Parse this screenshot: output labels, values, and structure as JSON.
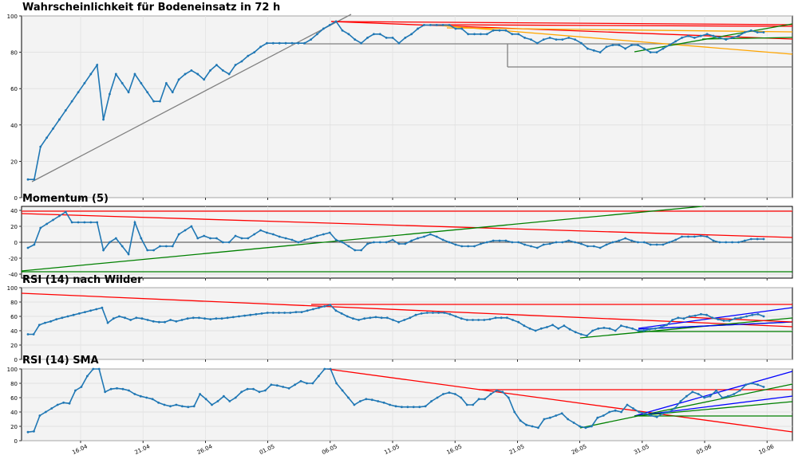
{
  "chart_data": [
    {
      "type": "line",
      "title": "Wahrscheinlichkeit für Bodeneinsatz in 72 h",
      "ylim": [
        0,
        100
      ],
      "yticks": [
        0,
        20,
        40,
        60,
        80,
        100
      ],
      "grid": true,
      "series": [
        {
          "values": [
            10,
            10,
            28,
            33,
            38,
            43,
            48,
            53,
            58,
            63,
            68,
            73,
            43,
            57,
            68,
            63,
            58,
            68,
            63,
            58,
            53,
            53,
            63,
            58,
            65,
            68,
            70,
            68,
            65,
            70,
            73,
            70,
            68,
            73,
            75,
            78,
            80,
            83,
            85,
            85,
            85,
            85,
            85,
            85,
            85,
            87,
            90,
            93,
            95,
            97,
            92,
            90,
            87,
            85,
            88,
            90,
            90,
            88,
            88,
            85,
            88,
            90,
            93,
            95,
            95,
            95,
            95,
            95,
            93,
            93,
            90,
            90,
            90,
            90,
            92,
            92,
            92,
            90,
            90,
            88,
            87,
            85,
            87,
            88,
            87,
            87,
            88,
            87,
            85,
            82,
            81,
            80,
            83,
            84,
            84,
            82,
            84,
            84,
            82,
            80,
            80,
            82,
            84,
            86,
            88,
            89,
            88,
            89,
            90,
            89,
            88,
            87,
            88,
            89,
            91,
            92,
            91,
            91
          ]
        }
      ]
    },
    {
      "type": "line",
      "title": "Momentum (5)",
      "ylim": [
        -45,
        45
      ],
      "yticks": [
        -40,
        -20,
        0,
        20,
        40
      ],
      "grid": true,
      "series": [
        {
          "values": [
            -7,
            -3,
            18,
            23,
            28,
            33,
            38,
            25,
            25,
            25,
            25,
            25,
            -10,
            0,
            5,
            -5,
            -15,
            25,
            5,
            -10,
            -10,
            -5,
            -5,
            -5,
            10,
            15,
            20,
            5,
            8,
            5,
            5,
            0,
            0,
            8,
            5,
            5,
            10,
            15,
            12,
            10,
            7,
            5,
            3,
            0,
            3,
            5,
            8,
            10,
            12,
            3,
            0,
            -5,
            -10,
            -10,
            -2,
            0,
            0,
            0,
            3,
            -2,
            -2,
            2,
            5,
            7,
            10,
            7,
            3,
            0,
            -3,
            -5,
            -5,
            -5,
            -2,
            0,
            2,
            2,
            2,
            0,
            0,
            -3,
            -5,
            -7,
            -3,
            -2,
            0,
            0,
            2,
            0,
            -2,
            -5,
            -5,
            -7,
            -3,
            0,
            2,
            5,
            2,
            0,
            0,
            -3,
            -3,
            -3,
            0,
            3,
            7,
            7,
            7,
            8,
            7,
            2,
            0,
            0,
            0,
            0,
            2,
            4,
            4,
            4
          ]
        }
      ]
    },
    {
      "type": "line",
      "title": "RSI (14) nach Wilder",
      "ylim": [
        0,
        100
      ],
      "yticks": [
        0,
        20,
        40,
        60,
        80,
        100
      ],
      "grid": true,
      "series": [
        {
          "values": [
            35,
            35,
            48,
            51,
            53,
            56,
            58,
            60,
            62,
            64,
            66,
            68,
            70,
            72,
            51,
            57,
            60,
            58,
            55,
            58,
            57,
            55,
            53,
            52,
            52,
            55,
            53,
            55,
            57,
            58,
            58,
            57,
            56,
            57,
            57,
            58,
            59,
            60,
            61,
            62,
            63,
            64,
            65,
            65,
            65,
            65,
            65,
            66,
            66,
            68,
            70,
            72,
            74,
            76,
            68,
            64,
            60,
            57,
            55,
            57,
            58,
            59,
            58,
            58,
            55,
            52,
            55,
            58,
            62,
            64,
            65,
            65,
            65,
            65,
            63,
            60,
            57,
            55,
            55,
            55,
            55,
            56,
            58,
            58,
            58,
            55,
            52,
            47,
            43,
            40,
            43,
            45,
            48,
            43,
            47,
            42,
            38,
            35,
            33,
            40,
            43,
            44,
            43,
            40,
            47,
            45,
            43,
            40,
            40,
            42,
            43,
            45,
            48,
            55,
            58,
            57,
            60,
            61,
            63,
            62,
            58,
            56,
            54,
            54,
            57,
            58,
            60,
            62,
            63,
            60
          ]
        }
      ]
    },
    {
      "type": "line",
      "title": "RSI (14) SMA",
      "ylim": [
        0,
        100
      ],
      "yticks": [
        0,
        20,
        40,
        60,
        80,
        100
      ],
      "grid": true,
      "series": [
        {
          "values": [
            12,
            13,
            35,
            40,
            45,
            50,
            53,
            52,
            70,
            75,
            90,
            100,
            100,
            68,
            72,
            73,
            72,
            70,
            65,
            62,
            60,
            58,
            53,
            50,
            48,
            50,
            48,
            47,
            48,
            65,
            58,
            50,
            55,
            62,
            55,
            60,
            68,
            72,
            72,
            68,
            70,
            78,
            77,
            75,
            73,
            78,
            83,
            80,
            80,
            90,
            100,
            100,
            80,
            70,
            60,
            50,
            55,
            58,
            57,
            55,
            53,
            50,
            48,
            47,
            47,
            47,
            47,
            48,
            55,
            60,
            65,
            67,
            65,
            60,
            50,
            50,
            58,
            58,
            65,
            70,
            68,
            60,
            40,
            28,
            22,
            20,
            18,
            30,
            32,
            35,
            38,
            30,
            25,
            20,
            18,
            20,
            32,
            35,
            40,
            42,
            40,
            50,
            45,
            40,
            38,
            35,
            33,
            38,
            40,
            45,
            55,
            62,
            68,
            65,
            60,
            62,
            70,
            60,
            62,
            65,
            70,
            78,
            80,
            78,
            75
          ]
        }
      ]
    }
  ],
  "x_axis": {
    "tick_labels": [
      "16.04",
      "21.04",
      "26.04",
      "01.05",
      "06.05",
      "11.05",
      "16.05",
      "21.05",
      "26.05",
      "31.05",
      "05.06",
      "10.06"
    ]
  },
  "colors": {
    "series": "#1f77b4",
    "resistance": "#ff0000",
    "support": "#008000",
    "orange_trend": "#ffa500",
    "gray_trend": "#808080",
    "blue_trend": "#0000ff",
    "plot_background": "#f3f3f3"
  }
}
